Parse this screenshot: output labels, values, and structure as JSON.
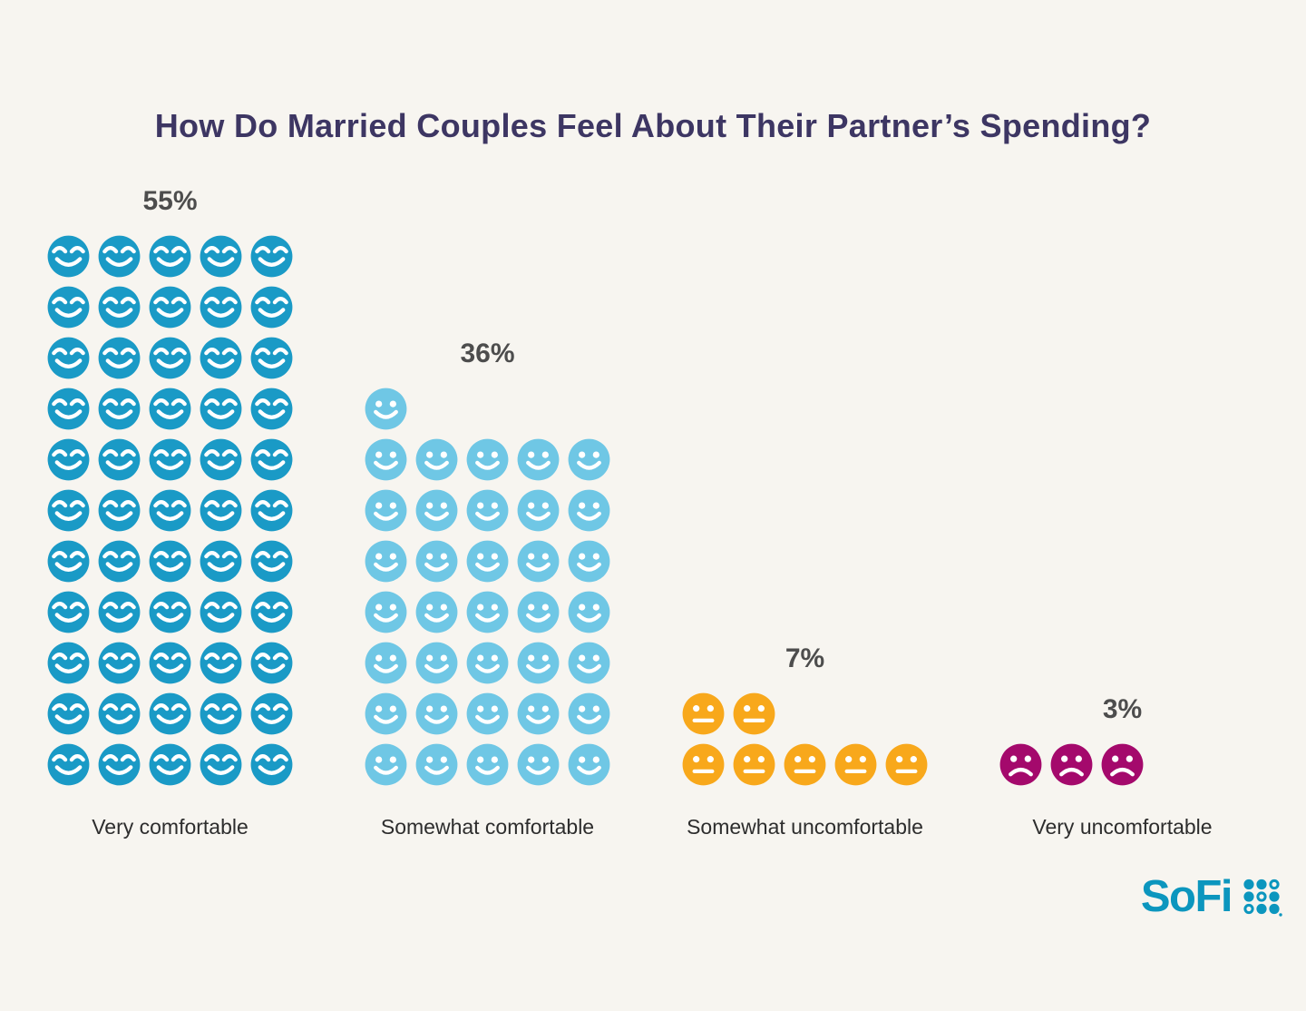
{
  "title": "How Do Married Couples Feel About Their Partner’s Spending?",
  "chart_data": {
    "type": "pictogram",
    "description": "Each face icon represents 1 percentage point; icons stack bottom-aligned in rows of 5, remainder row on top, left-aligned.",
    "icons_per_row": 5,
    "percent_per_icon": 1,
    "categories": [
      "Very comfortable",
      "Somewhat comfortable",
      "Somewhat uncomfortable",
      "Very uncomfortable"
    ],
    "values": [
      55,
      36,
      7,
      3
    ],
    "series": [
      {
        "category": "Very comfortable",
        "value": 55,
        "value_label": "55%",
        "face": "smiling-closed-eyes-face-icon",
        "color": "#1A9AC6"
      },
      {
        "category": "Somewhat comfortable",
        "value": 36,
        "value_label": "36%",
        "face": "smiling-face-icon",
        "color": "#6FC7E5"
      },
      {
        "category": "Somewhat uncomfortable",
        "value": 7,
        "value_label": "7%",
        "face": "neutral-face-icon",
        "color": "#F8A81B"
      },
      {
        "category": "Very uncomfortable",
        "value": 3,
        "value_label": "3%",
        "face": "sad-face-icon",
        "color": "#A4096C"
      }
    ]
  },
  "footer": {
    "brand_text": "SoFi",
    "brand_logo_icon": "sofi-dot-grid-icon",
    "brand_color": "#0C96BE"
  },
  "style": {
    "background": "#F7F5F0",
    "title_color": "#3D3663",
    "percent_color": "#4D4D4D",
    "label_color": "#2D2D2D"
  }
}
